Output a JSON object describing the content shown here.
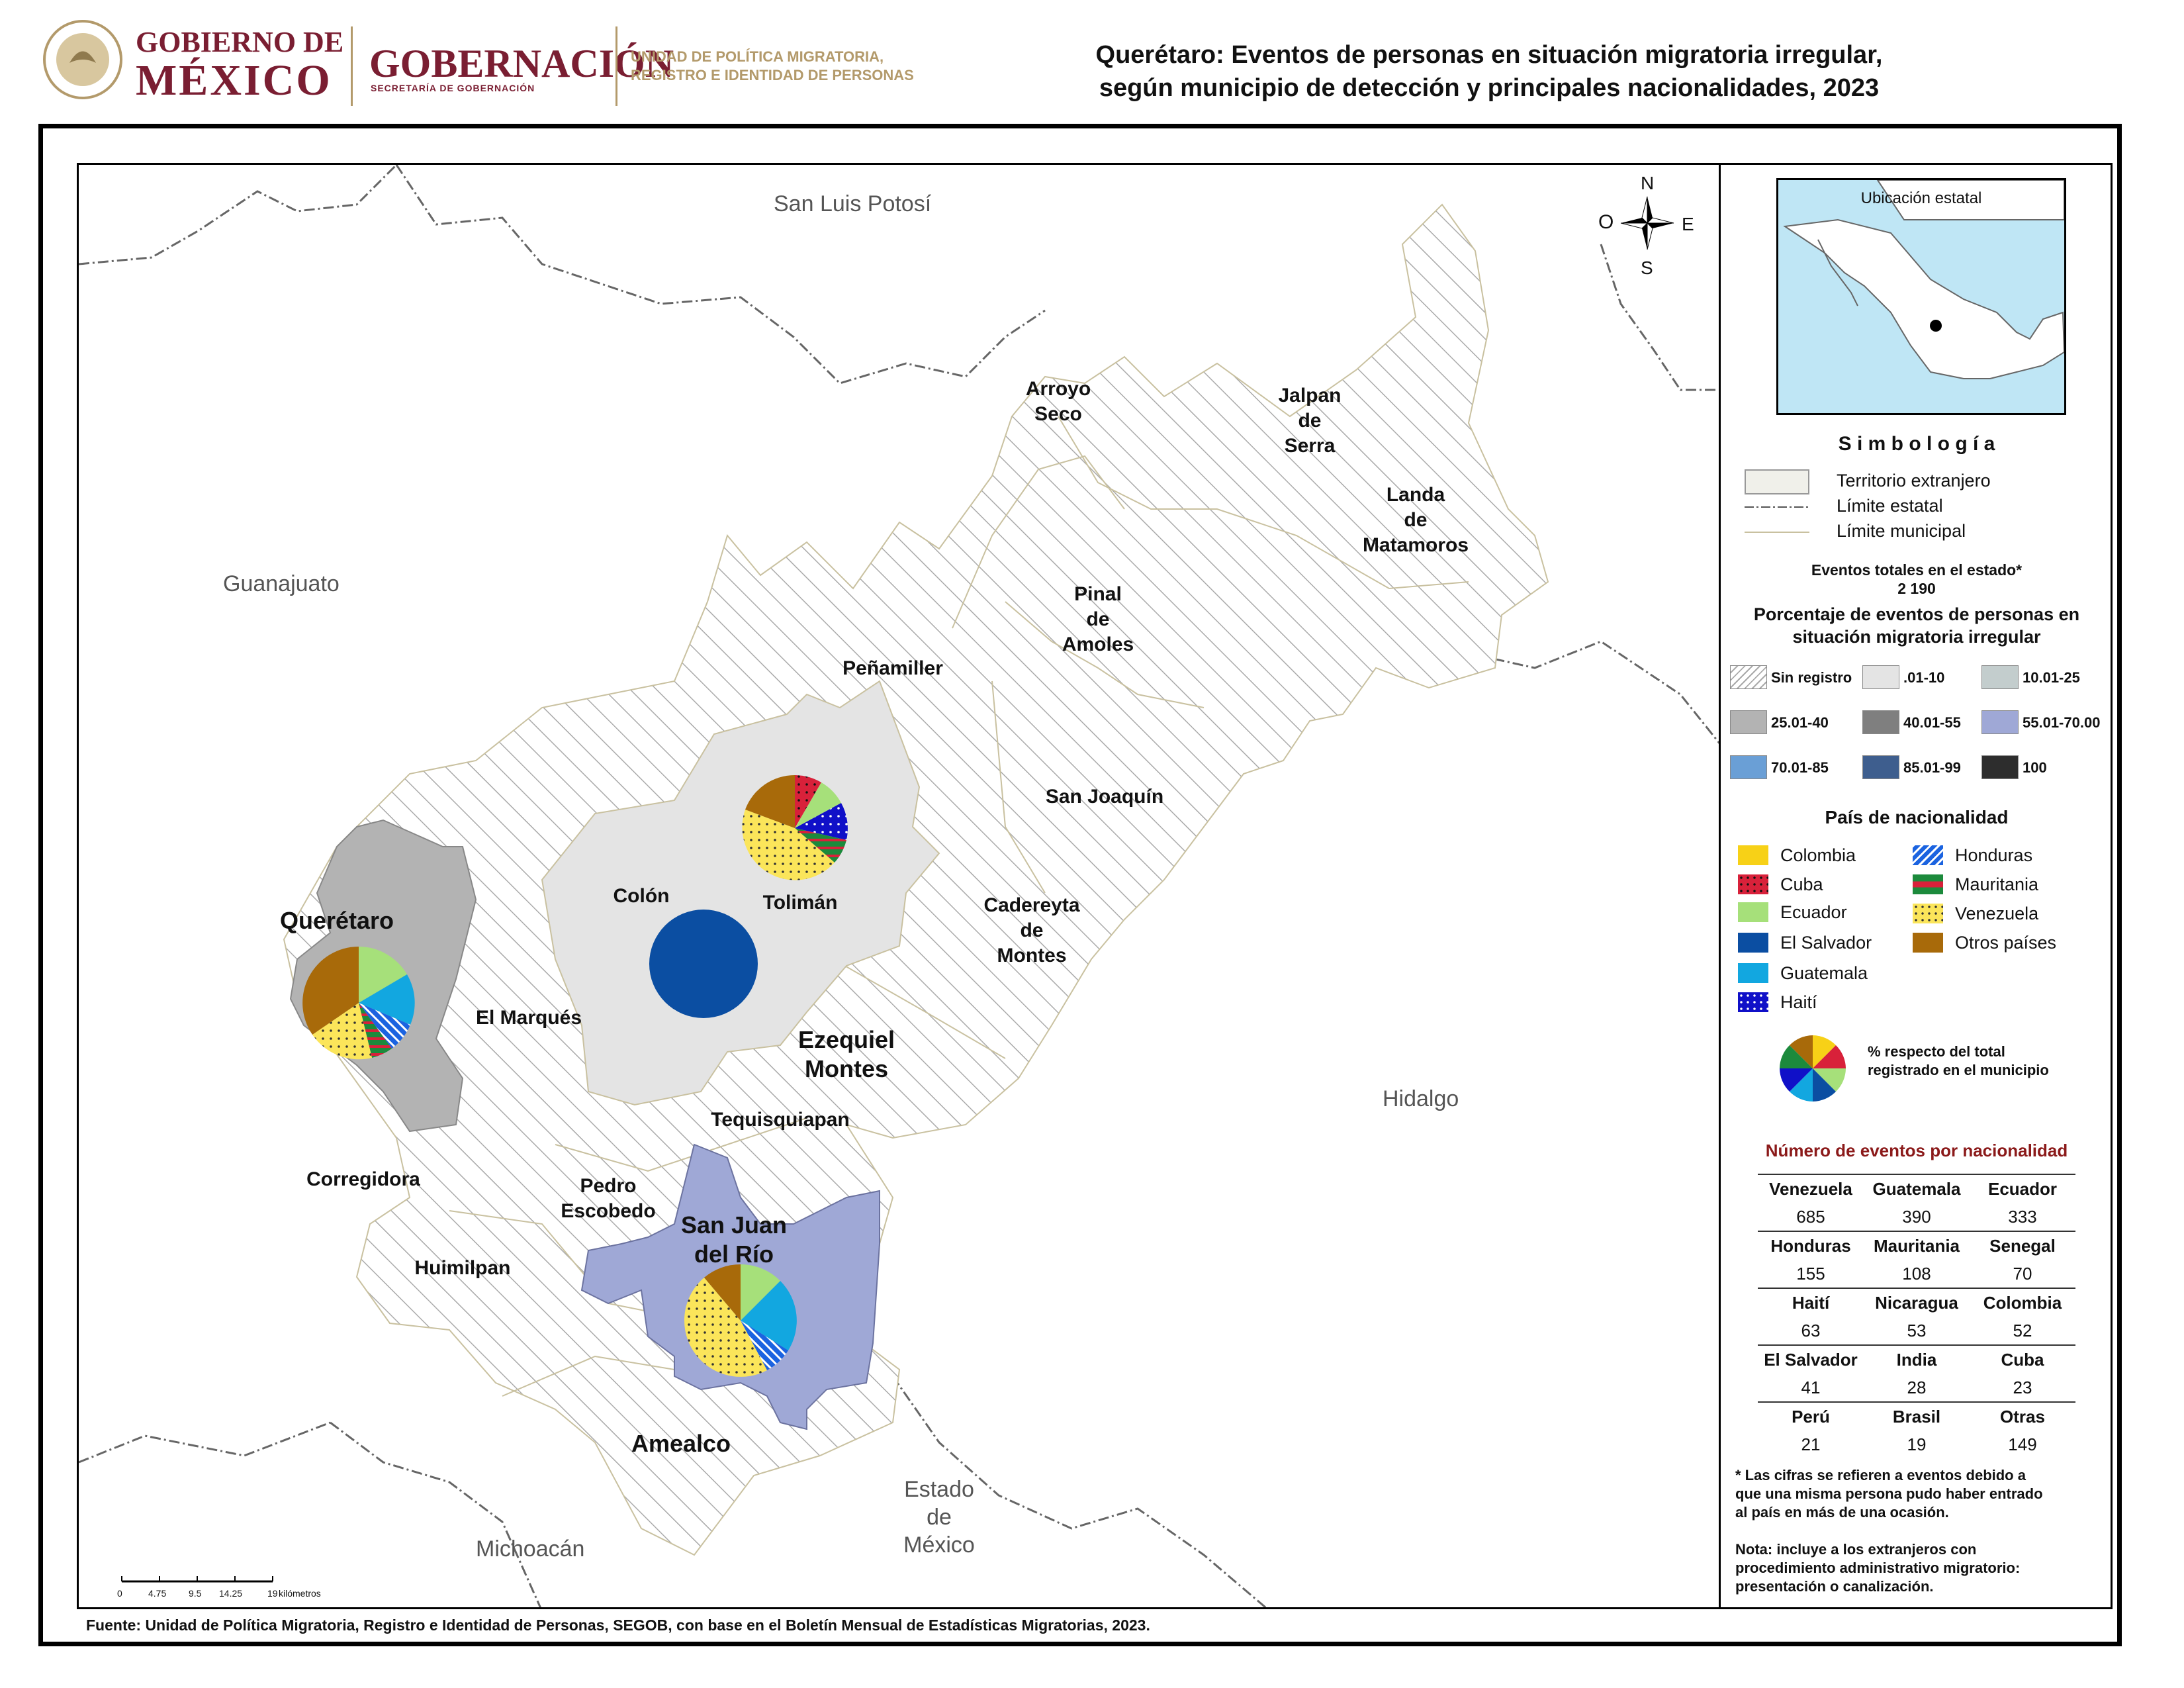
{
  "header": {
    "gob_line1": "GOBIERNO DE",
    "gob_line2": "MÉXICO",
    "gobernacion": "GOBERNACIÓN",
    "secretaria": "SECRETARÍA DE GOBERNACIÓN",
    "unidad_line1": "UNIDAD DE POLÍTICA MIGRATORIA,",
    "unidad_line2": "REGISTRO E IDENTIDAD DE PERSONAS",
    "title_line1": "Querétaro: Eventos de personas en situación migratoria irregular,",
    "title_line2": "según municipio de detección y principales nacionalidades, 2023"
  },
  "map": {
    "states": {
      "slp": "San Luis Potosí",
      "guanajuato": "Guanajuato",
      "hidalgo": "Hidalgo",
      "michoacan": "Michoacán",
      "edomex_1": "Estado",
      "edomex_2": "de",
      "edomex_3": "México"
    },
    "municipios": {
      "arroyo_seco_1": "Arroyo",
      "arroyo_seco_2": "Seco",
      "jalpan_1": "Jalpan",
      "jalpan_2": "de",
      "jalpan_3": "Serra",
      "landa_1": "Landa",
      "landa_2": "de",
      "landa_3": "Matamoros",
      "pinal_1": "Pinal",
      "pinal_2": "de",
      "pinal_3": "Amoles",
      "penamiller": "Peñamiller",
      "san_joaquin": "San Joaquín",
      "cadereyta_1": "Cadereyta",
      "cadereyta_2": "de",
      "cadereyta_3": "Montes",
      "colon": "Colón",
      "toliman": "Tolimán",
      "queretaro": "Querétaro",
      "el_marques": "El Marqués",
      "ezequiel_1": "Ezequiel",
      "ezequiel_2": "Montes",
      "tequisquiapan": "Tequisquiapan",
      "corregidora": "Corregidora",
      "pedro_1": "Pedro",
      "pedro_2": "Escobedo",
      "sjr_1": "San Juan",
      "sjr_2": "del Río",
      "huimilpan": "Huimilpan",
      "amealco": "Amealco"
    },
    "compass": {
      "n": "N",
      "s": "S",
      "e": "E",
      "o": "O"
    },
    "scale": {
      "t0": "0",
      "t1": "4.75",
      "t2": "9.5",
      "t3": "14.25",
      "t4": "19",
      "unit": "kilómetros"
    }
  },
  "legend": {
    "inset_title": "Ubicación estatal",
    "simbologia": "S i m b o l o g í a",
    "territorio": "Territorio extranjero",
    "limite_estatal": "Límite estatal",
    "limite_municipal": "Límite municipal",
    "eventos_label": "Eventos totales en el estado*",
    "eventos_total": "2 190",
    "porcentaje_1": "Porcentaje de eventos de personas en",
    "porcentaje_2": "situación migratoria irregular",
    "classes": [
      {
        "label": "Sin registro",
        "color": "hatch"
      },
      {
        "label": ".01-10",
        "color": "#e4e4e4"
      },
      {
        "label": "10.01-25",
        "color": "#c3cdcd"
      },
      {
        "label": "25.01-40",
        "color": "#b3b3b3"
      },
      {
        "label": "40.01-55",
        "color": "#7f7f7f"
      },
      {
        "label": "55.01-70.00",
        "color": "#9fa8d6"
      },
      {
        "label": "70.01-85",
        "color": "#6a9fd6"
      },
      {
        "label": "85.01-99",
        "color": "#3e5e8e"
      },
      {
        "label": "100",
        "color": "#2d2d2d"
      }
    ],
    "pais_title": "País de nacionalidad",
    "nationalities": [
      {
        "label": "Colombia",
        "color": "#f7d117",
        "pattern": "solid"
      },
      {
        "label": "Cuba",
        "color": "#d8213a",
        "pattern": "dots"
      },
      {
        "label": "Ecuador",
        "color": "#a6e07a",
        "pattern": "solid"
      },
      {
        "label": "El Salvador",
        "color": "#0b4ea2",
        "pattern": "solid"
      },
      {
        "label": "Guatemala",
        "color": "#12a7e0",
        "pattern": "solid"
      },
      {
        "label": "Haití",
        "color": "#1010c8",
        "pattern": "dots"
      },
      {
        "label": "Honduras",
        "color": "#1b63e0",
        "pattern": "stripes"
      },
      {
        "label": "Mauritania",
        "color": "#1c8a3c",
        "pattern": "band"
      },
      {
        "label": "Venezuela",
        "color": "#fbe55a",
        "pattern": "dots"
      },
      {
        "label": "Otros países",
        "color": "#a86a0a",
        "pattern": "solid"
      }
    ],
    "pie_note_1": "%  respecto del total",
    "pie_note_2": "registrado en el municipio",
    "table_title": "Número de eventos por nacionalidad",
    "table": [
      {
        "names": [
          "Venezuela",
          "Guatemala",
          "Ecuador"
        ],
        "values": [
          "685",
          "390",
          "333"
        ]
      },
      {
        "names": [
          "Honduras",
          "Mauritania",
          "Senegal"
        ],
        "values": [
          "155",
          "108",
          "70"
        ]
      },
      {
        "names": [
          "Haití",
          "Nicaragua",
          "Colombia"
        ],
        "values": [
          "63",
          "53",
          "52"
        ]
      },
      {
        "names": [
          "El Salvador",
          "India",
          "Cuba"
        ],
        "values": [
          "41",
          "28",
          "23"
        ]
      },
      {
        "names": [
          "Perú",
          "Brasil",
          "Otras"
        ],
        "values": [
          "21",
          "19",
          "149"
        ]
      }
    ],
    "note1_1": "* Las cifras se refieren a eventos debido a",
    "note1_2": "que una misma persona pudo haber entrado",
    "note1_3": "al país en más de una ocasión.",
    "note2_1": "Nota: incluye a los extranjeros con",
    "note2_2": "procedimiento administrativo migratorio:",
    "note2_3": "presentación o canalización."
  },
  "source": "Fuente: Unidad de Política Migratoria, Registro e Identidad de Personas, SEGOB, con base en el Boletín Mensual de Estadísticas Migratorias, 2023."
}
